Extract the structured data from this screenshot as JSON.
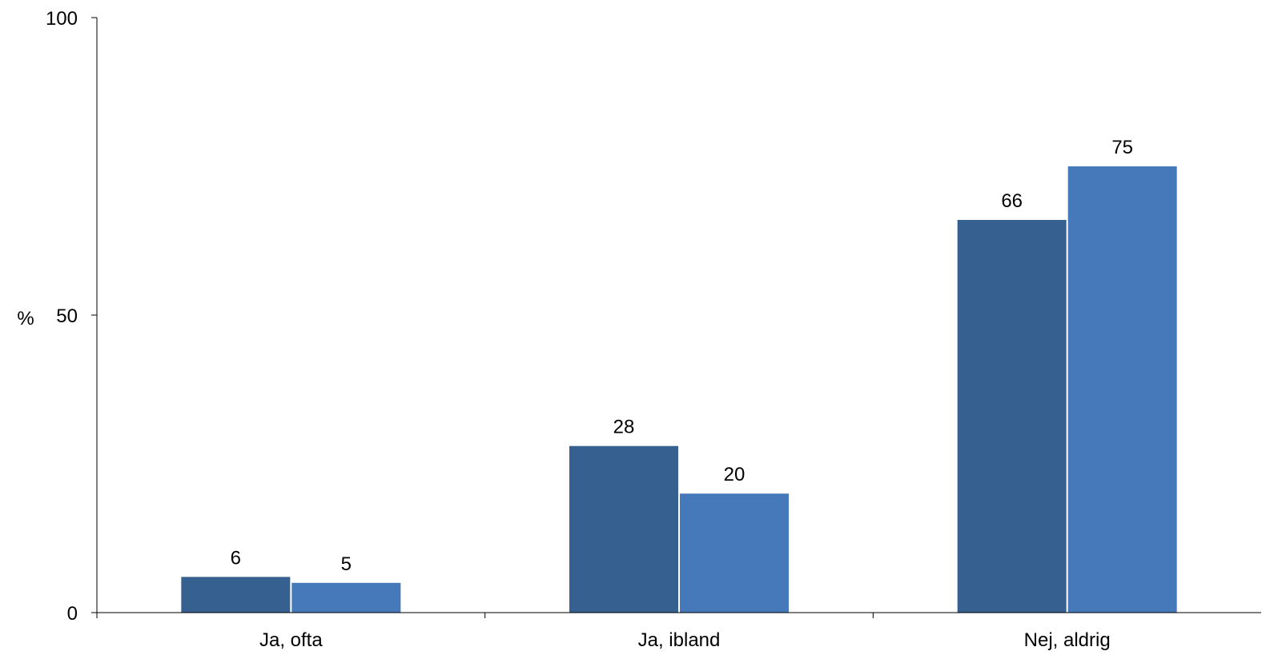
{
  "chart_data": {
    "type": "bar",
    "categories": [
      "Ja, ofta",
      "Ja, ibland",
      "Nej, aldrig"
    ],
    "series": [
      {
        "values": [
          6,
          28,
          66
        ],
        "color": "#36608F"
      },
      {
        "values": [
          5,
          20,
          75
        ],
        "color": "#4679B9"
      }
    ],
    "ylabel": "%",
    "ylim": [
      0,
      100
    ],
    "yticks": [
      "0",
      "50",
      "100"
    ],
    "ytick_values": [
      0,
      50,
      100
    ],
    "grid": false,
    "legend": "none"
  }
}
